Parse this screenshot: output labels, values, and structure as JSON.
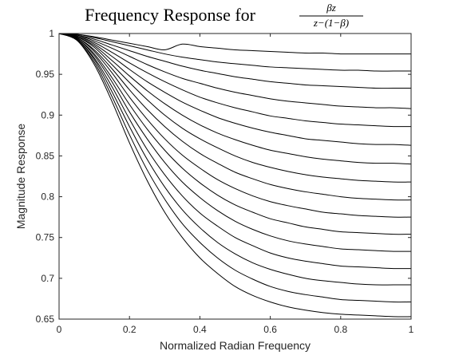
{
  "chart_data": {
    "type": "line",
    "title": "Frequency Response for",
    "title_formula": {
      "numerator": "βz",
      "denominator": "z−(1−β)"
    },
    "xlabel": "Normalized Radian Frequency",
    "ylabel": "Magnitude Response",
    "xlim": [
      0,
      1
    ],
    "ylim": [
      0.65,
      1
    ],
    "xticks": [
      0,
      0.2,
      0.4,
      0.6,
      0.8,
      1
    ],
    "xtick_labels": [
      "0",
      "0.2",
      "0.4",
      "0.6",
      "0.8",
      "1"
    ],
    "yticks": [
      0.65,
      0.7,
      0.75,
      0.8,
      0.85,
      0.9,
      0.95,
      1
    ],
    "ytick_labels": [
      "0.65",
      "0.7",
      "0.75",
      "0.8",
      "0.85",
      "0.9",
      "0.95",
      "1"
    ],
    "grid": false,
    "line_color": "#000000",
    "x": [
      0,
      0.05,
      0.1,
      0.15,
      0.2,
      0.25,
      0.3,
      0.35,
      0.4,
      0.45,
      0.5,
      0.55,
      0.6,
      0.65,
      0.7,
      0.75,
      0.8,
      0.85,
      0.9,
      0.95,
      1
    ],
    "series": [
      {
        "values": [
          1,
          0.999,
          0.996,
          0.992,
          0.988,
          0.984,
          0.98,
          0.987,
          0.984,
          0.982,
          0.98,
          0.979,
          0.978,
          0.977,
          0.976,
          0.976,
          0.975,
          0.975,
          0.975,
          0.975,
          0.975
        ]
      },
      {
        "values": [
          1,
          0.999,
          0.995,
          0.99,
          0.985,
          0.98,
          0.975,
          0.971,
          0.968,
          0.965,
          0.963,
          0.961,
          0.959,
          0.958,
          0.957,
          0.956,
          0.955,
          0.955,
          0.954,
          0.954,
          0.954
        ]
      },
      {
        "values": [
          1,
          0.998,
          0.993,
          0.986,
          0.979,
          0.972,
          0.966,
          0.96,
          0.955,
          0.951,
          0.947,
          0.944,
          0.941,
          0.939,
          0.937,
          0.936,
          0.935,
          0.934,
          0.933,
          0.933,
          0.933
        ]
      },
      {
        "values": [
          1,
          0.998,
          0.991,
          0.982,
          0.972,
          0.962,
          0.953,
          0.945,
          0.939,
          0.933,
          0.928,
          0.924,
          0.92,
          0.917,
          0.915,
          0.913,
          0.911,
          0.91,
          0.909,
          0.909,
          0.908
        ]
      },
      {
        "values": [
          1,
          0.997,
          0.989,
          0.977,
          0.964,
          0.952,
          0.941,
          0.931,
          0.922,
          0.915,
          0.909,
          0.904,
          0.899,
          0.896,
          0.893,
          0.891,
          0.889,
          0.888,
          0.887,
          0.886,
          0.886
        ]
      },
      {
        "values": [
          1,
          0.997,
          0.987,
          0.972,
          0.956,
          0.941,
          0.928,
          0.916,
          0.906,
          0.897,
          0.89,
          0.884,
          0.879,
          0.875,
          0.871,
          0.869,
          0.867,
          0.865,
          0.864,
          0.864,
          0.863
        ]
      },
      {
        "values": [
          1,
          0.996,
          0.985,
          0.967,
          0.948,
          0.93,
          0.914,
          0.9,
          0.888,
          0.878,
          0.87,
          0.863,
          0.857,
          0.853,
          0.849,
          0.846,
          0.844,
          0.842,
          0.841,
          0.841,
          0.84
        ]
      },
      {
        "values": [
          1,
          0.996,
          0.983,
          0.962,
          0.94,
          0.919,
          0.9,
          0.884,
          0.871,
          0.86,
          0.85,
          0.842,
          0.836,
          0.831,
          0.827,
          0.824,
          0.822,
          0.82,
          0.819,
          0.818,
          0.818
        ]
      },
      {
        "values": [
          1,
          0.995,
          0.98,
          0.957,
          0.931,
          0.907,
          0.886,
          0.868,
          0.853,
          0.841,
          0.83,
          0.822,
          0.815,
          0.81,
          0.806,
          0.803,
          0.8,
          0.798,
          0.797,
          0.796,
          0.796
        ]
      },
      {
        "values": [
          1,
          0.995,
          0.978,
          0.952,
          0.922,
          0.895,
          0.871,
          0.851,
          0.835,
          0.821,
          0.81,
          0.801,
          0.794,
          0.789,
          0.785,
          0.781,
          0.779,
          0.777,
          0.776,
          0.775,
          0.775
        ]
      },
      {
        "values": [
          1,
          0.994,
          0.975,
          0.946,
          0.913,
          0.883,
          0.857,
          0.835,
          0.817,
          0.802,
          0.79,
          0.781,
          0.773,
          0.768,
          0.763,
          0.76,
          0.757,
          0.756,
          0.755,
          0.754,
          0.754
        ]
      },
      {
        "values": [
          1,
          0.994,
          0.973,
          0.941,
          0.904,
          0.871,
          0.842,
          0.818,
          0.799,
          0.783,
          0.77,
          0.76,
          0.752,
          0.746,
          0.742,
          0.739,
          0.736,
          0.735,
          0.734,
          0.733,
          0.733
        ]
      },
      {
        "values": [
          1,
          0.993,
          0.97,
          0.935,
          0.895,
          0.858,
          0.827,
          0.801,
          0.78,
          0.764,
          0.75,
          0.74,
          0.731,
          0.725,
          0.721,
          0.718,
          0.715,
          0.714,
          0.713,
          0.712,
          0.712
        ]
      },
      {
        "values": [
          1,
          0.993,
          0.968,
          0.929,
          0.886,
          0.846,
          0.812,
          0.784,
          0.762,
          0.744,
          0.73,
          0.719,
          0.711,
          0.705,
          0.7,
          0.697,
          0.695,
          0.693,
          0.692,
          0.692,
          0.692
        ]
      },
      {
        "values": [
          1,
          0.992,
          0.965,
          0.923,
          0.876,
          0.833,
          0.797,
          0.767,
          0.744,
          0.725,
          0.71,
          0.699,
          0.69,
          0.684,
          0.68,
          0.677,
          0.674,
          0.673,
          0.672,
          0.671,
          0.671
        ]
      },
      {
        "values": [
          1,
          0.992,
          0.962,
          0.917,
          0.866,
          0.82,
          0.781,
          0.75,
          0.725,
          0.706,
          0.69,
          0.679,
          0.671,
          0.665,
          0.661,
          0.658,
          0.656,
          0.655,
          0.654,
          0.653,
          0.653
        ]
      }
    ]
  }
}
